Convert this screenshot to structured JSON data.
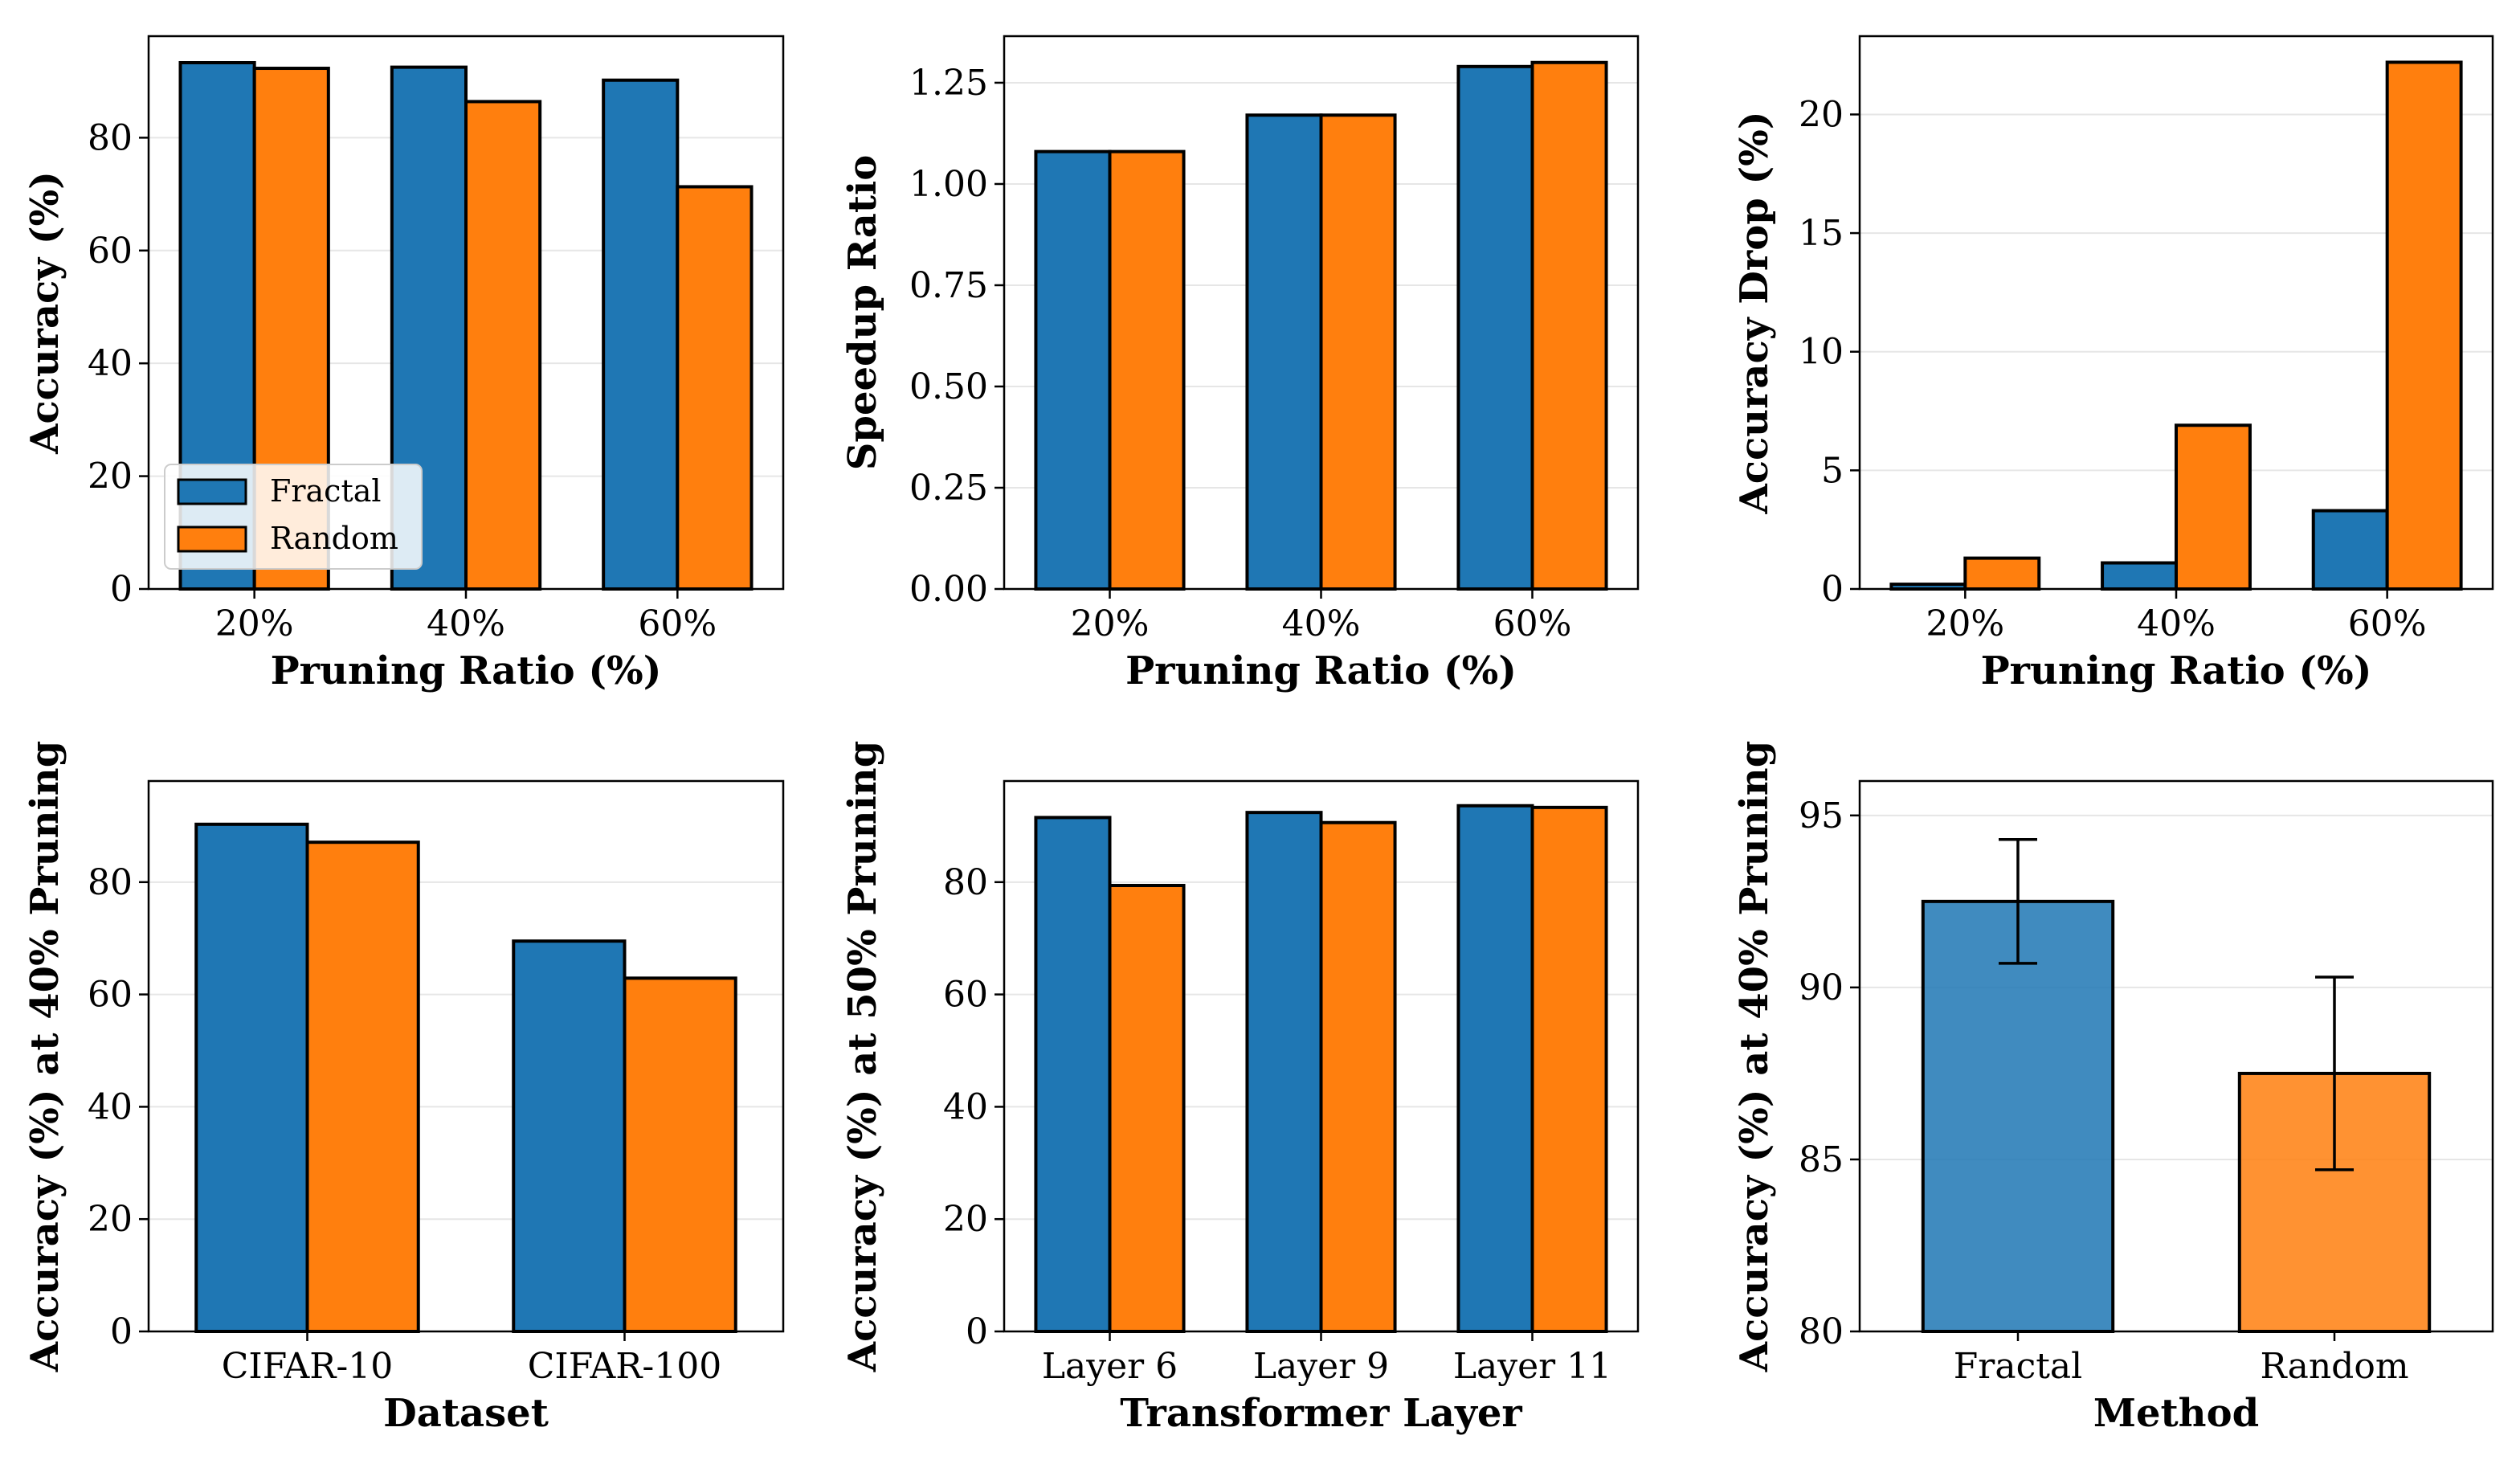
{
  "colors": {
    "fractal": "#1f77b4",
    "random": "#ff7f0e"
  },
  "legend": {
    "location": "lower-left",
    "panel": 0,
    "entries": [
      "Fractal",
      "Random"
    ]
  },
  "chart_data": [
    {
      "type": "bar",
      "categories": [
        "20%",
        "40%",
        "60%"
      ],
      "series": [
        {
          "name": "Fractal",
          "values": [
            93.3,
            92.5,
            90.2
          ]
        },
        {
          "name": "Random",
          "values": [
            92.3,
            86.4,
            71.3
          ]
        }
      ],
      "xlabel": "Pruning Ratio (%)",
      "ylabel": "Accuracy (%)",
      "ylim": [
        0,
        98
      ],
      "yticks": [
        0,
        20,
        40,
        60,
        80
      ],
      "grid": true
    },
    {
      "type": "bar",
      "categories": [
        "20%",
        "40%",
        "60%"
      ],
      "series": [
        {
          "name": "Fractal",
          "values": [
            1.08,
            1.17,
            1.29
          ]
        },
        {
          "name": "Random",
          "values": [
            1.08,
            1.17,
            1.3
          ]
        }
      ],
      "xlabel": "Pruning Ratio (%)",
      "ylabel": "Speedup Ratio",
      "ylim": [
        0,
        1.365
      ],
      "yticks": [
        "0.00",
        "0.25",
        "0.50",
        "0.75",
        "1.00",
        "1.25"
      ],
      "grid": true
    },
    {
      "type": "bar",
      "categories": [
        "20%",
        "40%",
        "60%"
      ],
      "series": [
        {
          "name": "Fractal",
          "values": [
            0.2,
            1.1,
            3.3
          ]
        },
        {
          "name": "Random",
          "values": [
            1.3,
            6.9,
            22.2
          ]
        }
      ],
      "xlabel": "Pruning Ratio (%)",
      "ylabel": "Accuracy Drop (%)",
      "ylim": [
        0,
        23.3
      ],
      "yticks": [
        0,
        5,
        10,
        15,
        20
      ],
      "grid": true
    },
    {
      "type": "bar",
      "categories": [
        "CIFAR-10",
        "CIFAR-100"
      ],
      "series": [
        {
          "name": "Fractal",
          "values": [
            90.3,
            69.5
          ]
        },
        {
          "name": "Random",
          "values": [
            87.1,
            62.9
          ]
        }
      ],
      "xlabel": "Dataset",
      "ylabel": "Accuracy (%) at 40% Pruning",
      "ylim": [
        0,
        98
      ],
      "yticks": [
        0,
        20,
        40,
        60,
        80
      ],
      "grid": true
    },
    {
      "type": "bar",
      "categories": [
        "Layer 6",
        "Layer 9",
        "Layer 11"
      ],
      "series": [
        {
          "name": "Fractal",
          "values": [
            91.5,
            92.4,
            93.6
          ]
        },
        {
          "name": "Random",
          "values": [
            79.4,
            90.6,
            93.3
          ]
        }
      ],
      "xlabel": "Transformer Layer",
      "ylabel": "Accuracy (%) at 50% Pruning",
      "ylim": [
        0,
        98
      ],
      "yticks": [
        0,
        20,
        40,
        60,
        80
      ],
      "grid": true
    },
    {
      "type": "bar",
      "categories": [
        "Fractal",
        "Random"
      ],
      "values": [
        92.5,
        87.5
      ],
      "errors": [
        1.8,
        2.8
      ],
      "xlabel": "Method",
      "ylabel": "Accuracy (%) at 40% Pruning",
      "ylim": [
        80,
        96
      ],
      "yticks": [
        80,
        85,
        90,
        95
      ],
      "grid": true
    }
  ]
}
